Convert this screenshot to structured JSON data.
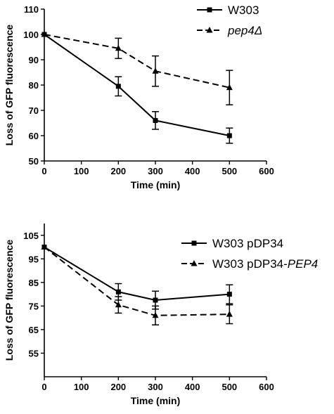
{
  "chart_data": [
    {
      "type": "line",
      "xlabel": "Time (min)",
      "ylabel": "Loss of GFP fluorescence",
      "xlim": [
        0,
        600
      ],
      "ylim": [
        50,
        110
      ],
      "xticks": [
        "0",
        "100",
        "200",
        "300",
        "400",
        "500",
        "600"
      ],
      "yticks": [
        "50",
        "60",
        "70",
        "80",
        "90",
        "100",
        "110"
      ],
      "grid": false,
      "legend_position": "top-right",
      "x": [
        0,
        200,
        300,
        500
      ],
      "series": [
        {
          "name": "W303",
          "name_parts": [
            {
              "text": "W303",
              "italic": false
            }
          ],
          "style": "solid",
          "marker": "square",
          "values": [
            100,
            79.5,
            66,
            60
          ],
          "errors": [
            0,
            3.8,
            3.5,
            3
          ]
        },
        {
          "name": "pep4Δ",
          "name_parts": [
            {
              "text": "pep4Δ",
              "italic": true
            }
          ],
          "style": "dashed",
          "marker": "triangle",
          "values": [
            100,
            94.5,
            85.5,
            79
          ],
          "errors": [
            0,
            4,
            6,
            6.8
          ]
        }
      ]
    },
    {
      "type": "line",
      "xlabel": "Time (min)",
      "ylabel": "Loss of GFP fluorescence",
      "xlim": [
        0,
        600
      ],
      "ylim": [
        45,
        110
      ],
      "xticks": [
        "0",
        "100",
        "200",
        "300",
        "400",
        "500",
        "600"
      ],
      "yticks": [
        "55",
        "65",
        "75",
        "85",
        "95",
        "105"
      ],
      "grid": false,
      "legend_position": "top-right",
      "x": [
        0,
        200,
        300,
        500
      ],
      "series": [
        {
          "name": "W303 pDP34",
          "name_parts": [
            {
              "text": "W303 pDP34",
              "italic": false
            }
          ],
          "style": "solid",
          "marker": "square",
          "values": [
            100,
            81,
            77.5,
            80
          ],
          "errors": [
            0,
            3.5,
            3.8,
            4
          ]
        },
        {
          "name": "W303 pDP34-PEP4",
          "name_parts": [
            {
              "text": "W303 pDP34-",
              "italic": false
            },
            {
              "text": "PEP4",
              "italic": true
            }
          ],
          "style": "dashed",
          "marker": "triangle",
          "values": [
            100,
            75.5,
            71,
            71.5
          ],
          "errors": [
            0,
            3.5,
            4,
            4
          ]
        }
      ]
    }
  ]
}
